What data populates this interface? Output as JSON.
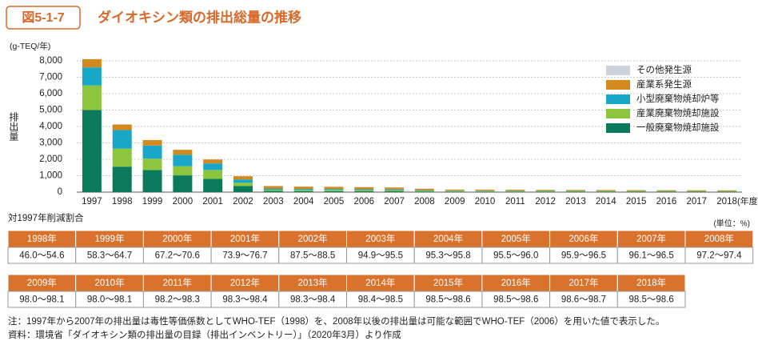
{
  "header": {
    "figure_no": "図5-1-7",
    "title": "ダイオキシン類の排出総量の推移"
  },
  "chart_data": {
    "type": "stacked_bar",
    "ylabel": "排出量",
    "yunit": "(g-TEQ/年)",
    "xunit": "(年度)",
    "categories": [
      "1997",
      "1998",
      "1999",
      "2000",
      "2001",
      "2002",
      "2003",
      "2004",
      "2005",
      "2006",
      "2007",
      "2008",
      "2009",
      "2010",
      "2011",
      "2012",
      "2013",
      "2014",
      "2015",
      "2016",
      "2017",
      "2018"
    ],
    "series": [
      {
        "name": "一般廃棄物焼却施設",
        "color": "#0b7a5c",
        "values": [
          5000,
          1550,
          1350,
          1020,
          810,
          370,
          71,
          64,
          62,
          54,
          52,
          36,
          34,
          33,
          31,
          30,
          28,
          27,
          26,
          25,
          24,
          23
        ]
      },
      {
        "name": "産業廃棄物焼却施設",
        "color": "#8cc63f",
        "values": [
          1500,
          1100,
          690,
          560,
          540,
          200,
          75,
          70,
          75,
          60,
          50,
          40,
          30,
          30,
          28,
          27,
          26,
          25,
          24,
          23,
          22,
          21
        ]
      },
      {
        "name": "小型廃棄物焼却炉等",
        "color": "#19a7c9",
        "values": [
          1100,
          1130,
          800,
          700,
          400,
          200,
          75,
          60,
          55,
          55,
          60,
          40,
          20,
          20,
          18,
          18,
          17,
          16,
          15,
          15,
          14,
          14
        ]
      },
      {
        "name": "産業系発生源",
        "color": "#d4891c",
        "values": [
          500,
          340,
          330,
          300,
          240,
          200,
          150,
          140,
          130,
          130,
          120,
          90,
          70,
          70,
          68,
          60,
          58,
          56,
          55,
          54,
          53,
          52
        ]
      },
      {
        "name": "その他発生源",
        "color": "#ccd3dc",
        "values": [
          6,
          6,
          6,
          6,
          6,
          6,
          5,
          5,
          5,
          5,
          5,
          4,
          4,
          4,
          4,
          4,
          4,
          4,
          4,
          4,
          4,
          4
        ]
      }
    ],
    "ylim": [
      0,
      8000
    ],
    "yticks": [
      0,
      {
        "value": 1000,
        "label": "1,000"
      },
      {
        "value": 2000,
        "label": "2,000"
      },
      {
        "value": 3000,
        "label": "3,000"
      },
      {
        "value": 4000,
        "label": "4,000"
      },
      {
        "value": 5000,
        "label": "5,000"
      },
      {
        "value": 6000,
        "label": "6,000"
      },
      {
        "value": 7000,
        "label": "7,000"
      },
      {
        "value": 8000,
        "label": "8,000"
      }
    ],
    "grid": true,
    "legend": "upper right"
  },
  "table": {
    "title": "対1997年削減割合",
    "unit": "(単位：%)",
    "blocks": [
      {
        "header": [
          "1998年",
          "1999年",
          "2000年",
          "2001年",
          "2002年",
          "2003年",
          "2004年",
          "2005年",
          "2006年",
          "2007年",
          "2008年"
        ],
        "values": [
          "46.0～54.6",
          "58.3～64.7",
          "67.2～70.6",
          "73.9～76.7",
          "87.5～88.5",
          "94.9～95.5",
          "95.3～95.8",
          "95.5～96.0",
          "95.9～96.5",
          "96.1～96.5",
          "97.2～97.4"
        ]
      },
      {
        "header": [
          "2009年",
          "2010年",
          "2011年",
          "2012年",
          "2013年",
          "2014年",
          "2015年",
          "2016年",
          "2017年",
          "2018年"
        ],
        "values": [
          "98.0～98.1",
          "98.0～98.1",
          "98.2～98.3",
          "98.3～98.4",
          "98.3～98.4",
          "98.4～98.5",
          "98.5～98.6",
          "98.5～98.6",
          "98.6～98.7",
          "98.5～98.6"
        ]
      }
    ]
  },
  "notes": [
    "注：1997年から2007年の排出量は毒性等価係数としてWHO-TEF（1998）を、2008年以後の排出量は可能な範囲でWHO-TEF（2006）を用いた値で表示した。",
    "資料：環境省「ダイオキシン類の排出量の目録（排出インベントリー）」（2020年3月）より作成"
  ]
}
